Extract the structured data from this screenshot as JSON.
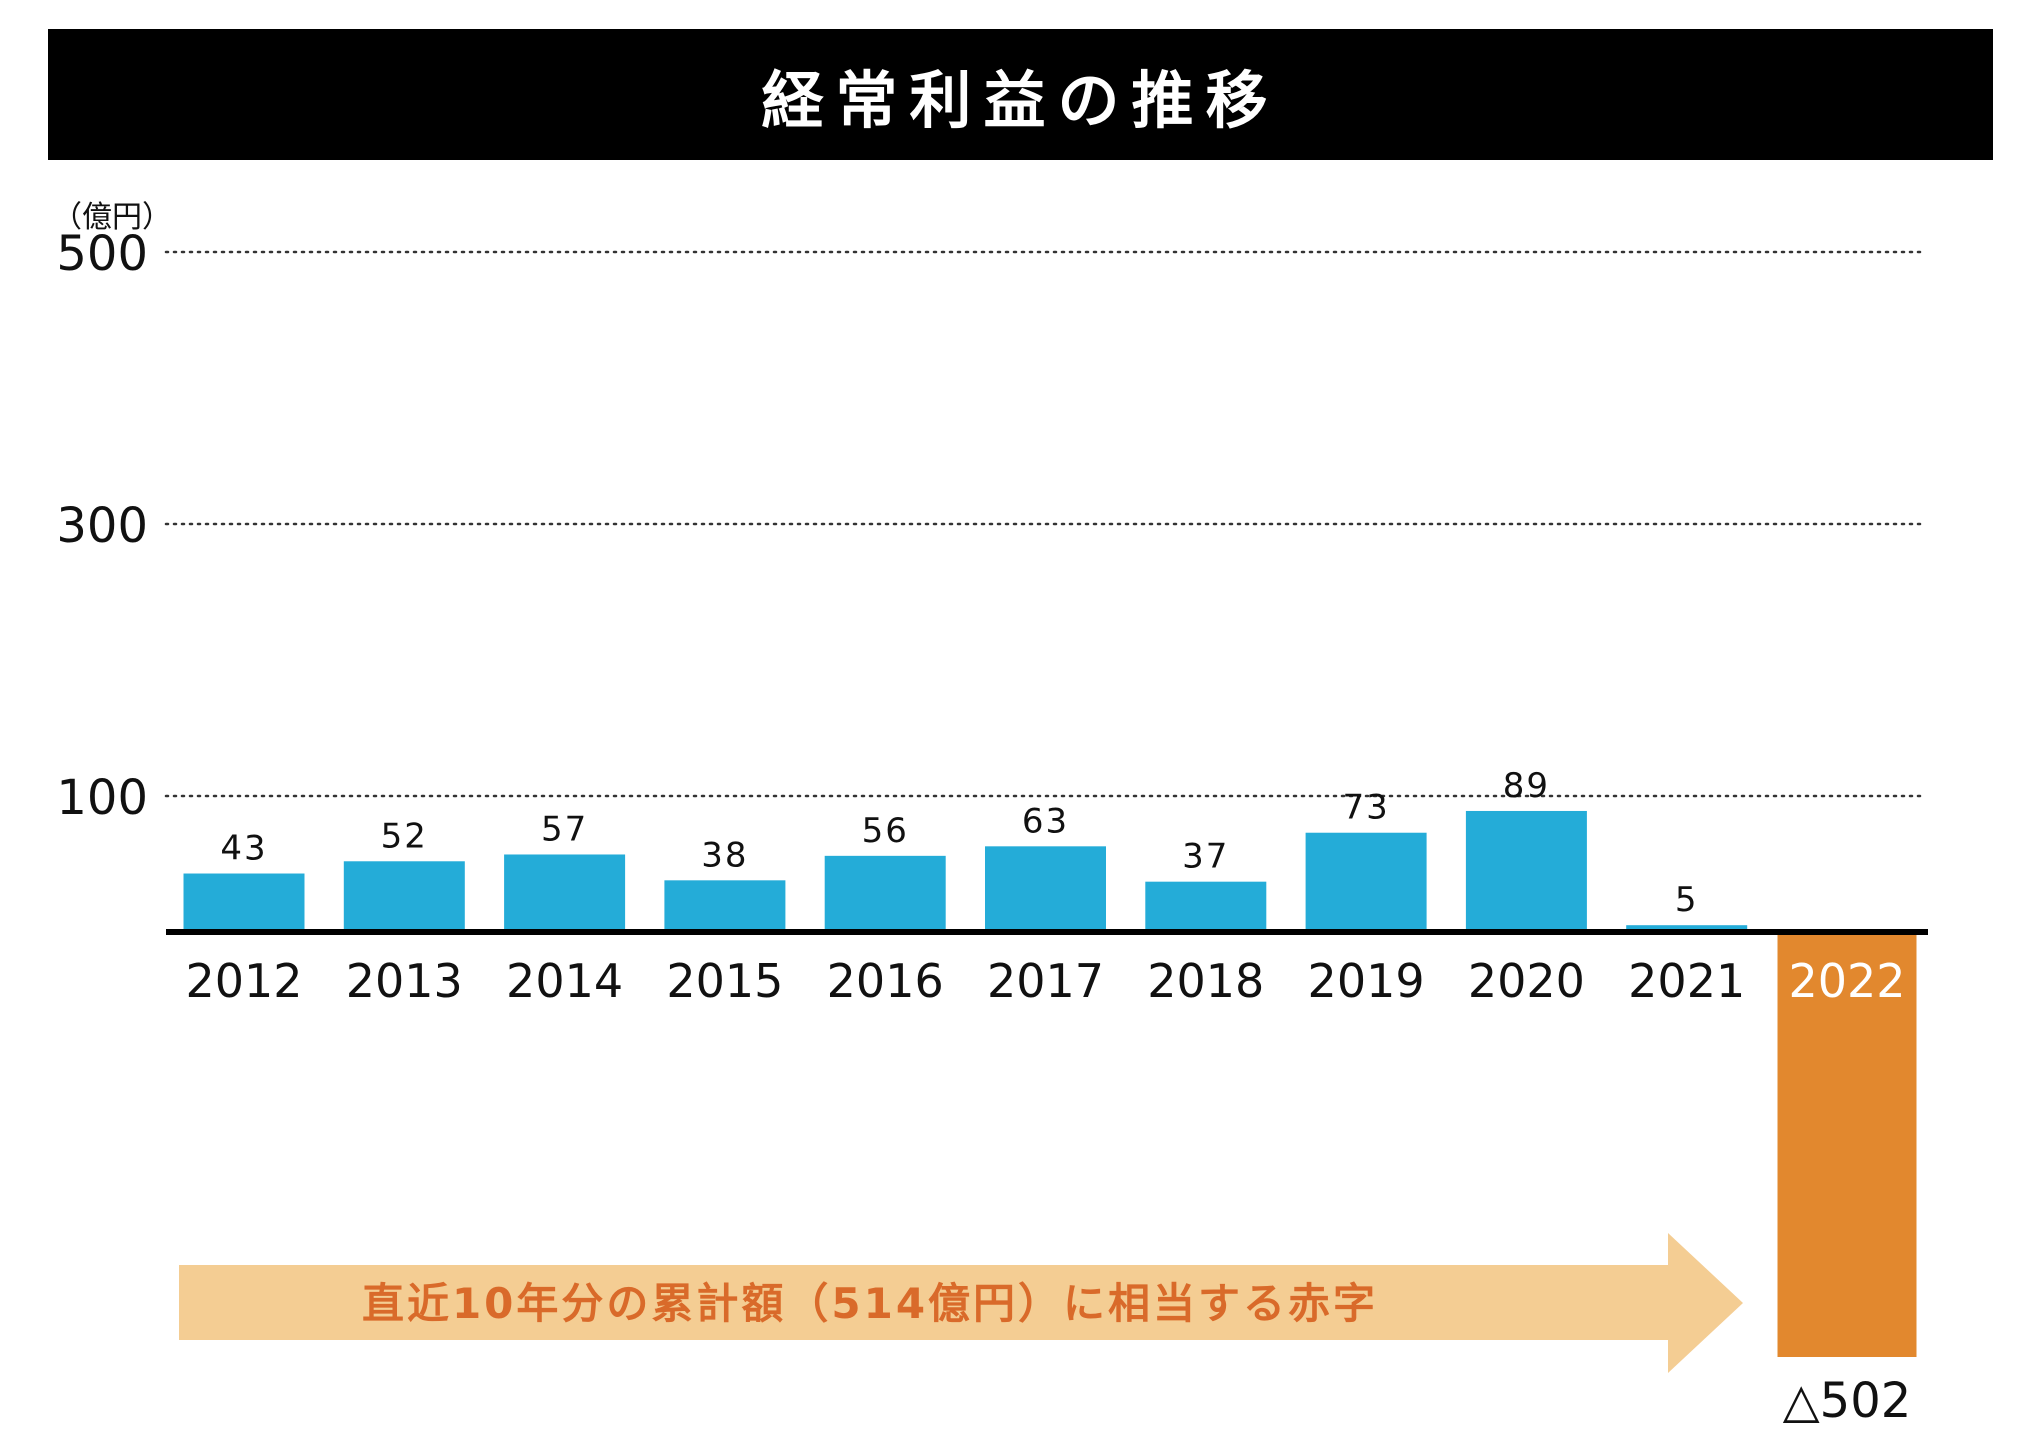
{
  "colors": {
    "bar": "#24acd8",
    "highlight": "#e2882e",
    "arrow": "#f4cd93",
    "arrow_text": "#d96a2a",
    "axis": "#000000",
    "title_bg": "#000000"
  },
  "chart_data": {
    "type": "bar",
    "title": "経常利益の推移",
    "unit": "（億円）",
    "categories": [
      "2012",
      "2013",
      "2014",
      "2015",
      "2016",
      "2017",
      "2018",
      "2019",
      "2020",
      "2021",
      "2022"
    ],
    "values": [
      43,
      52,
      57,
      38,
      56,
      63,
      37,
      73,
      89,
      5,
      -502
    ],
    "value_labels": [
      "43",
      "52",
      "57",
      "38",
      "56",
      "63",
      "37",
      "73",
      "89",
      "5",
      "△502"
    ],
    "highlight_category": "2022",
    "y_ticks": [
      100,
      300,
      500
    ],
    "y_tick_labels": [
      "100",
      "300",
      "500"
    ],
    "ylim": [
      -502,
      500
    ],
    "grid": "dotted",
    "annotation": "直近10年分の累計額（514億円）に相当する赤字"
  }
}
